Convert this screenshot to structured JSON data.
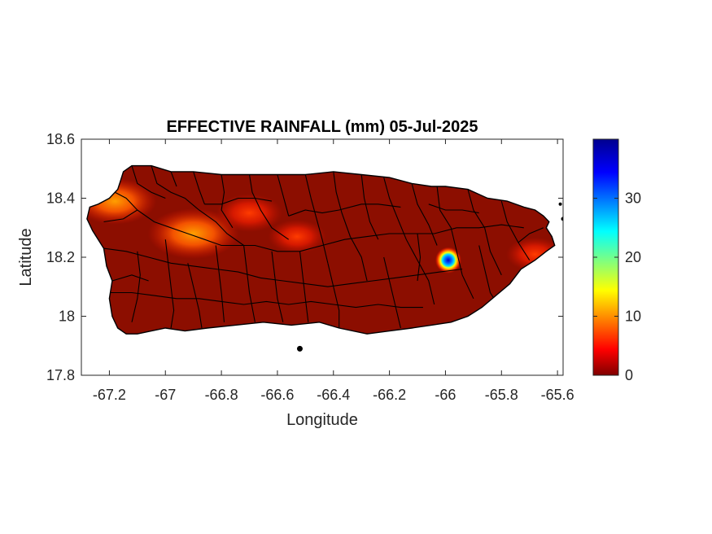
{
  "chart_data": {
    "type": "heatmap",
    "title": "EFFECTIVE RAINFALL (mm) 05-Jul-2025",
    "xlabel": "Longitude",
    "ylabel": "Latitude",
    "xlim": [
      -67.3,
      -65.58
    ],
    "ylim": [
      17.8,
      18.6
    ],
    "xticks": [
      -67.2,
      -67,
      -66.8,
      -66.6,
      -66.4,
      -66.2,
      -66,
      -65.8,
      -65.6
    ],
    "yticks": [
      18.6,
      18.4,
      18.2,
      18,
      17.8
    ],
    "colorbar": {
      "colormap": "jet",
      "clim": [
        0,
        40
      ],
      "ticks": [
        0,
        10,
        20,
        30
      ]
    },
    "grid": false,
    "rainfall_hotspots": [
      {
        "lon": -65.99,
        "lat": 18.19,
        "value_mm": 39
      },
      {
        "lon": -66.9,
        "lat": 18.28,
        "value_mm": 9
      },
      {
        "lon": -67.18,
        "lat": 18.39,
        "value_mm": 8
      },
      {
        "lon": -66.7,
        "lat": 18.35,
        "value_mm": 6
      },
      {
        "lon": -66.53,
        "lat": 18.27,
        "value_mm": 5
      },
      {
        "lon": -65.68,
        "lat": 18.21,
        "value_mm": 5
      }
    ]
  },
  "colors": {
    "land_base": "#8c0e00",
    "outline": "#000000"
  }
}
